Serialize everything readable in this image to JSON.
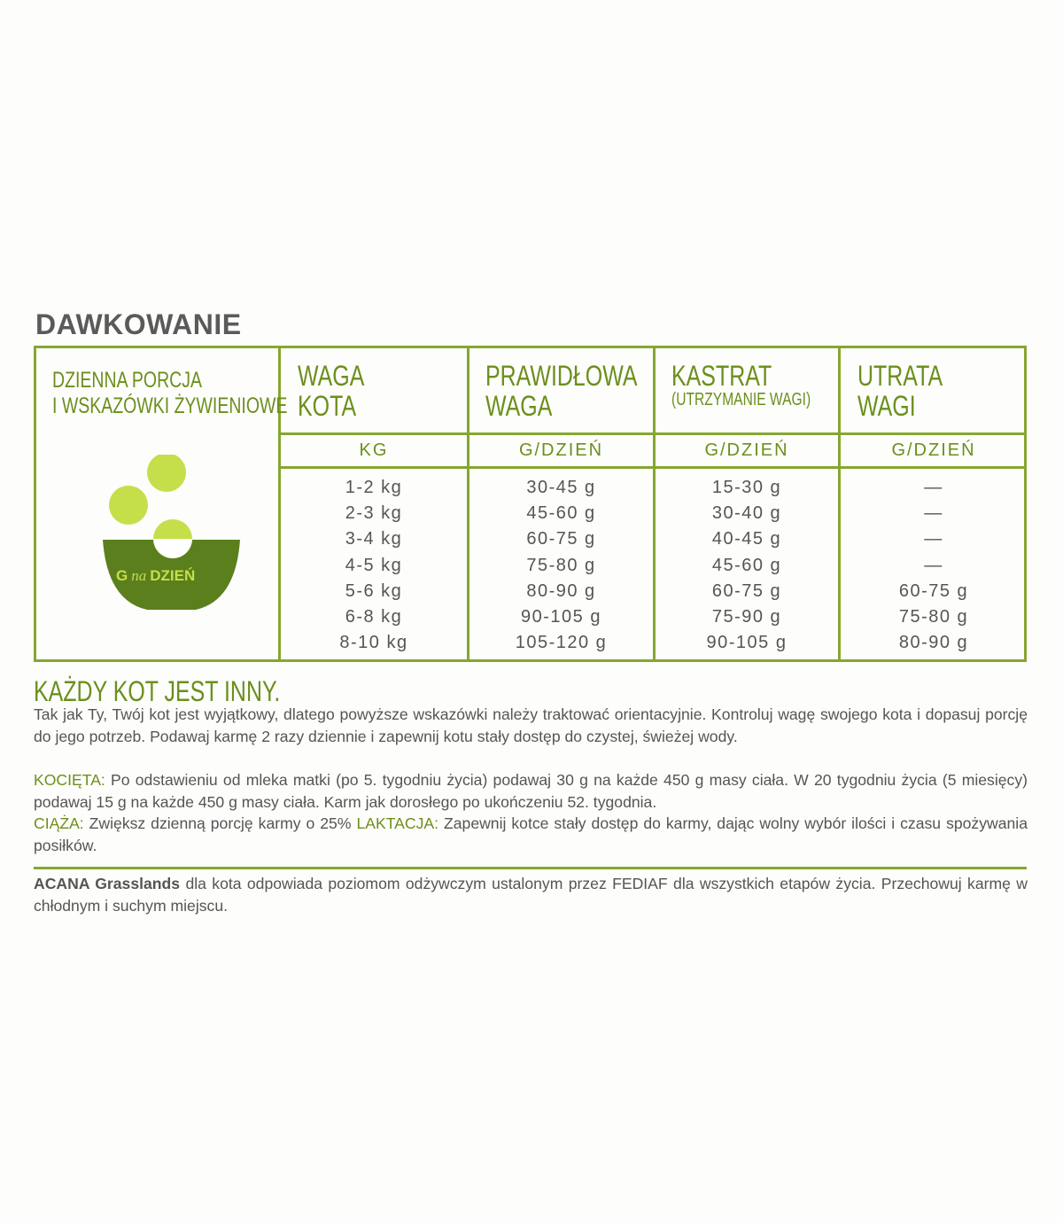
{
  "title": "DAWKOWANIE",
  "intro": {
    "line1": "DZIENNA PORCJA",
    "line2": "I WSKAZÓWKI ŻYWIENIOWE",
    "bowl_g": "G",
    "bowl_na": "na",
    "bowl_dzien": "DZIEŃ"
  },
  "columns": [
    {
      "h1": "WAGA",
      "h2": "KOTA",
      "sub": "",
      "unit": "KG",
      "values": [
        "1-2 kg",
        "2-3 kg",
        "3-4 kg",
        "4-5 kg",
        "5-6 kg",
        "6-8 kg",
        "8-10 kg"
      ]
    },
    {
      "h1": "PRAWIDŁOWA",
      "h2": "WAGA",
      "sub": "",
      "unit": "G/DZIEŃ",
      "values": [
        "30-45 g",
        "45-60 g",
        "60-75 g",
        "75-80 g",
        "80-90 g",
        "90-105 g",
        "105-120 g"
      ]
    },
    {
      "h1": "KASTRAT",
      "h2": "",
      "sub": "(UTRZYMANIE WAGI)",
      "unit": "G/DZIEŃ",
      "values": [
        "15-30 g",
        "30-40 g",
        "40-45 g",
        "45-60 g",
        "60-75 g",
        "75-90 g",
        "90-105 g"
      ]
    },
    {
      "h1": "UTRATA",
      "h2": "WAGI",
      "sub": "",
      "unit": "G/DZIEŃ",
      "values": [
        "—",
        "—",
        "—",
        "—",
        "60-75 g",
        "75-80 g",
        "80-90 g"
      ]
    }
  ],
  "heading2": "KAŻDY KOT JEST INNY.",
  "p1": "Tak jak Ty, Twój kot jest wyjątkowy, dlatego powyższe wskazówki należy traktować orientacyjnie. Kontroluj wagę swojego kota i dopasuj porcję do jego potrzeb. Podawaj karmę 2 razy dziennie i zapewnij kotu stały dostęp do czystej, świeżej wody.",
  "kittens_label": "KOCIĘTA:",
  "kittens_text": " Po odstawieniu od mleka matki (po 5. tygodniu życia) podawaj 30 g na każde 450 g masy ciała. W 20 tygodniu życia (5 miesięcy) podawaj 15 g na każde 450 g masy ciała. Karm jak dorosłego po ukończeniu 52. tygodnia.",
  "pregnancy_label": "CIĄŻA:",
  "pregnancy_text": " Zwiększ dzienną porcję karmy o 25% ",
  "lactation_label": "LAKTACJA:",
  "lactation_text": " Zapewnij kotce stały dostęp do karmy, dając wolny wybór ilości i czasu spożywania posiłków.",
  "footer_brand": "ACANA Grasslands",
  "footer_text": " dla kota odpowiada poziomom odżywczym ustalonym przez FEDIAF dla wszystkich etapów życia. Przechowuj karmę w chłodnym i suchym miejscu.",
  "colors": {
    "green": "#86a630",
    "text_green": "#6b8f1c",
    "bowl": "#5b7f1c",
    "ball": "#c4df4a"
  }
}
